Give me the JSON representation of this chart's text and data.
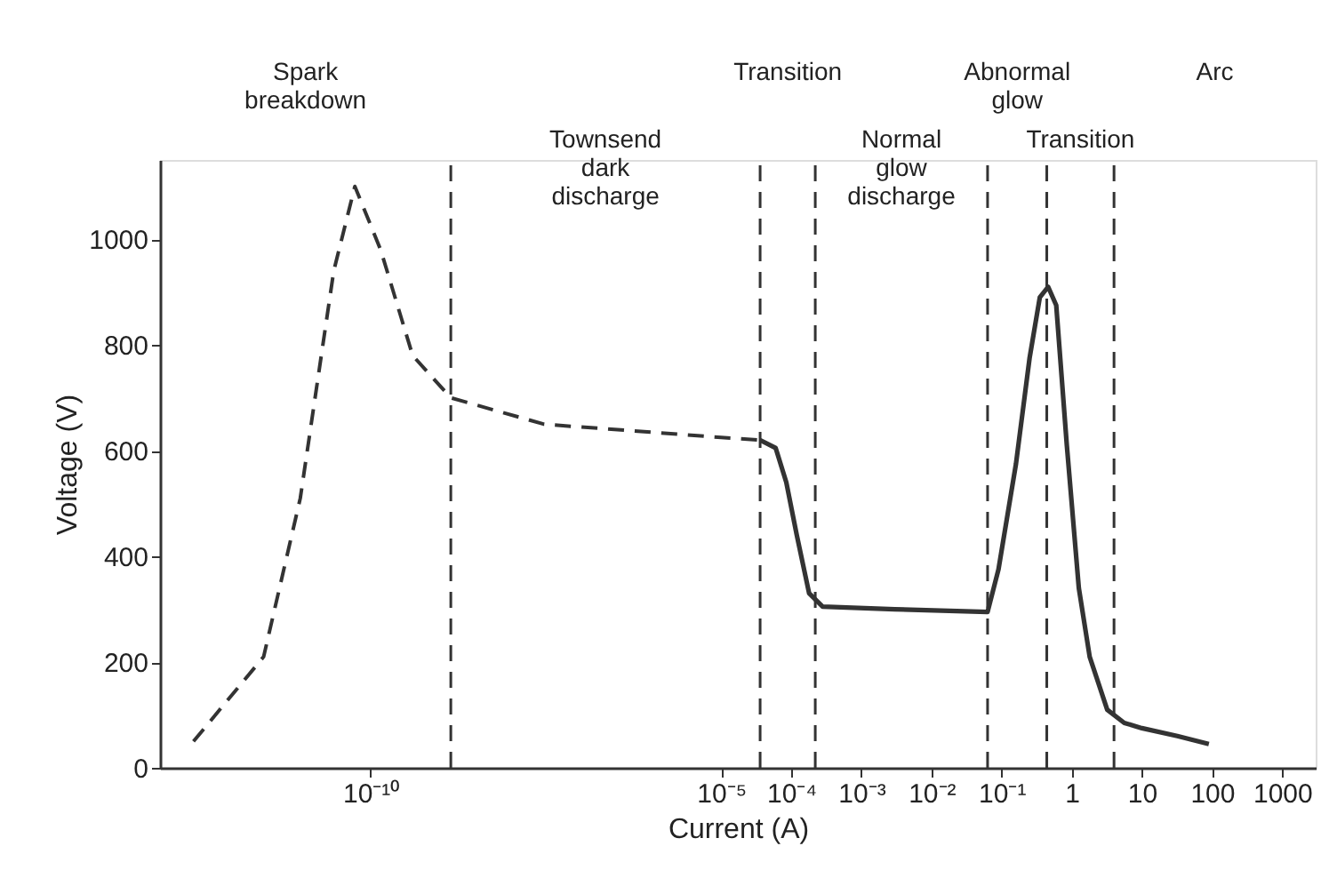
{
  "chart_data": {
    "type": "line",
    "xlabel": "Current (A)",
    "ylabel": "Voltage (V)",
    "log": "x",
    "xlim": [
      1e-13,
      3000
    ],
    "ylim": [
      0,
      1150
    ],
    "xticks": [
      {
        "value": 1e-10,
        "label": "10⁻¹⁰"
      },
      {
        "value": 1e-05,
        "label": "10⁻⁵"
      },
      {
        "value": 0.0001,
        "label": "10⁻⁴"
      },
      {
        "value": 0.001,
        "label": "10⁻³"
      },
      {
        "value": 0.01,
        "label": "10⁻²"
      },
      {
        "value": 0.1,
        "label": "10⁻¹"
      },
      1,
      10,
      100,
      1000
    ],
    "yticks": [
      0,
      200,
      400,
      600,
      800,
      1000
    ],
    "series": [
      {
        "color": "#333333",
        "line_style": "dashed",
        "x": [
          3e-13,
          3e-12,
          1e-11,
          3e-11,
          6e-11,
          1.4e-10,
          4e-10,
          1.4e-09,
          3e-08,
          1e-05,
          3.6e-05
        ],
        "values": [
          50,
          210,
          510,
          940,
          1100,
          980,
          780,
          700,
          650,
          625,
          620
        ]
      },
      {
        "color": "#333333",
        "line_style": "solid",
        "x": [
          3.6e-05,
          6e-05,
          8.5e-05,
          0.00012,
          0.00018,
          0.00028,
          0.003,
          0.063,
          0.09,
          0.16,
          0.25,
          0.35,
          0.46,
          0.6,
          0.85,
          1.26,
          1.8,
          3.2,
          5.6,
          10,
          32,
          90
        ],
        "values": [
          620,
          605,
          540,
          440,
          330,
          305,
          300,
          295,
          375,
          575,
          775,
          890,
          910,
          875,
          610,
          340,
          210,
          110,
          85,
          75,
          60,
          45
        ]
      }
    ],
    "ref_lines": [
      {
        "axis": "x",
        "value": 1.4e-09,
        "line_style": "dashed"
      },
      {
        "axis": "x",
        "value": 3.6e-05,
        "line_style": "dashed"
      },
      {
        "axis": "x",
        "value": 0.00022,
        "line_style": "dashed"
      },
      {
        "axis": "x",
        "value": 0.063,
        "line_style": "dashed"
      },
      {
        "axis": "x",
        "value": 0.44,
        "line_style": "dashed"
      },
      {
        "axis": "x",
        "value": 4,
        "line_style": "dashed"
      }
    ],
    "annotations": [
      "Spark\nbreakdown",
      "Townsend\ndark\ndischarge",
      "Transition",
      "Normal\nglow\ndischarge",
      "Abnormal\nglow",
      "Transition",
      "Arc"
    ]
  }
}
